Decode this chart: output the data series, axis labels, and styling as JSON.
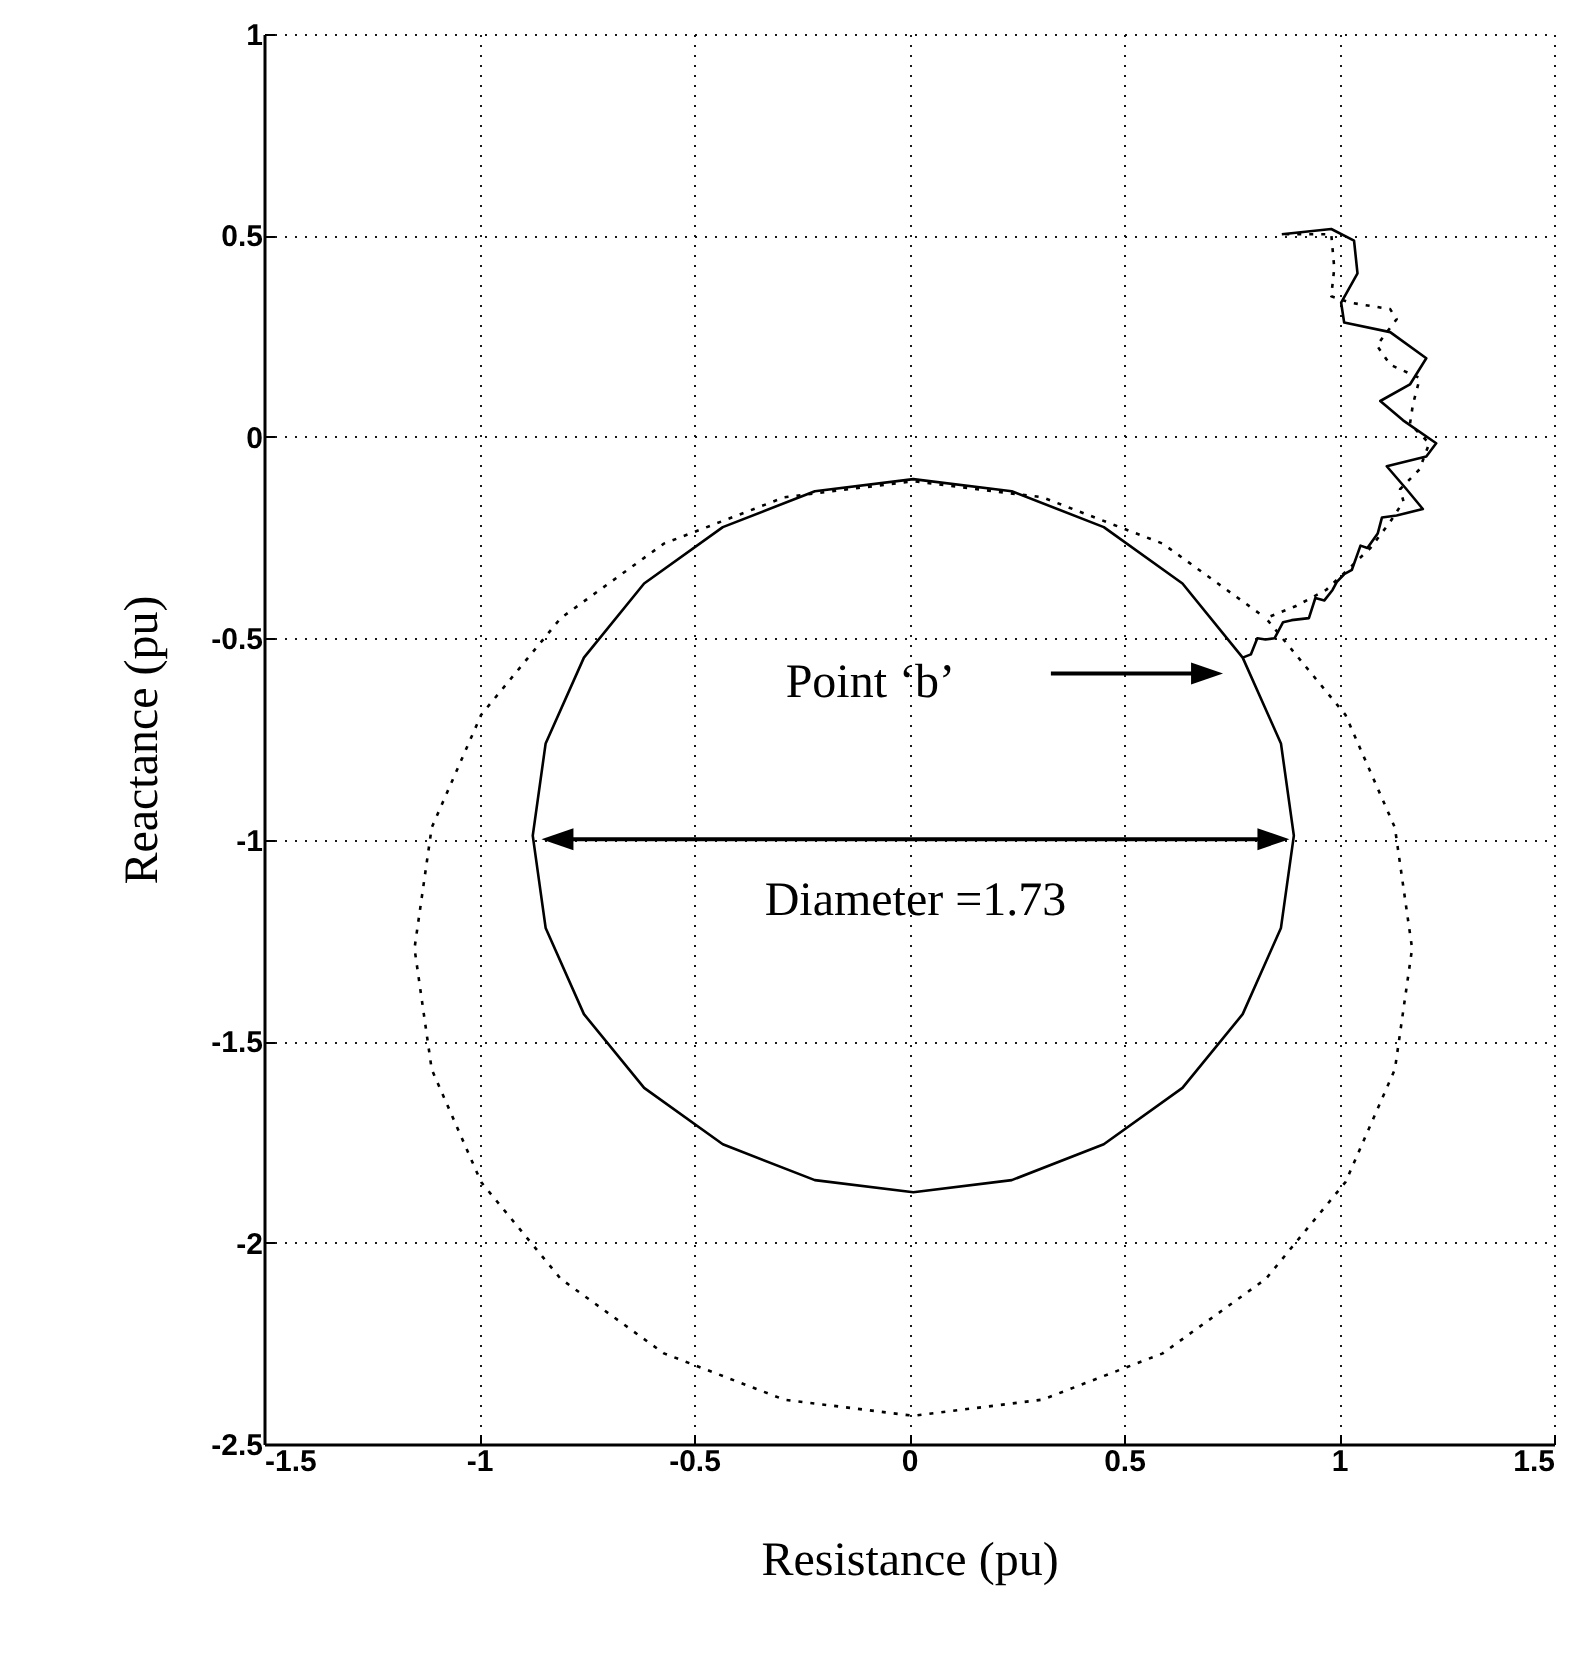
{
  "chart_data": {
    "type": "line",
    "xlabel": "Resistance (pu)",
    "ylabel": "Reactance (pu)",
    "xlim": [
      -1.5,
      1.5
    ],
    "xticks": [
      -1.5,
      -1,
      -0.5,
      0,
      0.5,
      1,
      1.5
    ],
    "ylim": [
      -2.5,
      1
    ],
    "yticks": [
      -2.5,
      -2,
      -1.5,
      -1,
      -0.5,
      0,
      0.5,
      1
    ],
    "grid": true,
    "marker": "none",
    "series": [
      {
        "color": "#000000",
        "line_style": "solid",
        "x": [
          0.867,
          0.982,
          1.035,
          1.043,
          1.005,
          1.012,
          1.119,
          1.203,
          1.165,
          1.096,
          1.149,
          1.226,
          1.203,
          1.111,
          1.157,
          1.195,
          1.134,
          1.1,
          1.09,
          1.066,
          1.05,
          1.03,
          1.012,
          0.995,
          0.985,
          0.966,
          0.945,
          0.93,
          0.89,
          0.87,
          0.85,
          0.829,
          0.81,
          0.795,
          0.776,
          0.865,
          0.895,
          0.865,
          0.776,
          0.636,
          0.453,
          0.239,
          0.01,
          -0.219,
          -0.433,
          -0.616,
          -0.756,
          -0.845,
          -0.875,
          -0.845,
          -0.756,
          -0.616,
          -0.433,
          -0.219,
          0.01,
          0.239,
          0.453,
          0.636,
          0.776
        ],
        "values": [
          0.503,
          0.516,
          0.487,
          0.406,
          0.333,
          0.284,
          0.26,
          0.195,
          0.13,
          0.089,
          0.041,
          -0.016,
          -0.049,
          -0.073,
          -0.13,
          -0.179,
          -0.195,
          -0.2,
          -0.24,
          -0.276,
          -0.27,
          -0.33,
          -0.341,
          -0.36,
          -0.38,
          -0.406,
          -0.4,
          -0.45,
          -0.455,
          -0.46,
          -0.5,
          -0.503,
          -0.5,
          -0.54,
          -0.548,
          -0.761,
          -0.99,
          -1.219,
          -1.433,
          -1.616,
          -1.756,
          -1.845,
          -1.875,
          -1.845,
          -1.756,
          -1.616,
          -1.433,
          -1.219,
          -0.99,
          -0.761,
          -0.548,
          -0.364,
          -0.224,
          -0.135,
          -0.105,
          -0.135,
          -0.224,
          -0.364,
          -0.548
        ]
      },
      {
        "color": "#000000",
        "line_style": "dotted",
        "x": [
          0.875,
          0.982,
          0.989,
          0.982,
          1.027,
          1.119,
          1.134,
          1.088,
          1.119,
          1.188,
          1.172,
          1.165,
          1.21,
          1.187,
          1.142,
          1.15,
          1.119,
          1.073,
          1.02,
          0.97,
          0.9,
          0.83,
          1.015,
          1.13,
          1.17,
          1.13,
          1.015,
          0.83,
          0.59,
          0.31,
          0.01,
          -0.29,
          -0.57,
          -0.81,
          -0.995,
          -1.11,
          -1.15,
          -1.11,
          -0.995,
          -0.81,
          -0.57,
          -0.29,
          0.01,
          0.31,
          0.59,
          0.83
        ],
        "values": [
          0.503,
          0.503,
          0.419,
          0.349,
          0.333,
          0.317,
          0.292,
          0.227,
          0.179,
          0.146,
          0.081,
          0.032,
          -0.016,
          -0.081,
          -0.13,
          -0.16,
          -0.211,
          -0.276,
          -0.33,
          -0.38,
          -0.42,
          -0.45,
          -0.69,
          -0.97,
          -1.27,
          -1.57,
          -1.85,
          -2.09,
          -2.275,
          -2.39,
          -2.43,
          -2.39,
          -2.275,
          -2.09,
          -1.85,
          -1.57,
          -1.27,
          -0.97,
          -0.69,
          -0.45,
          -0.265,
          -0.15,
          -0.11,
          -0.15,
          -0.265,
          -0.45
        ]
      }
    ],
    "annotations": [
      "Point ‘b’",
      "Diameter =1.73"
    ]
  }
}
